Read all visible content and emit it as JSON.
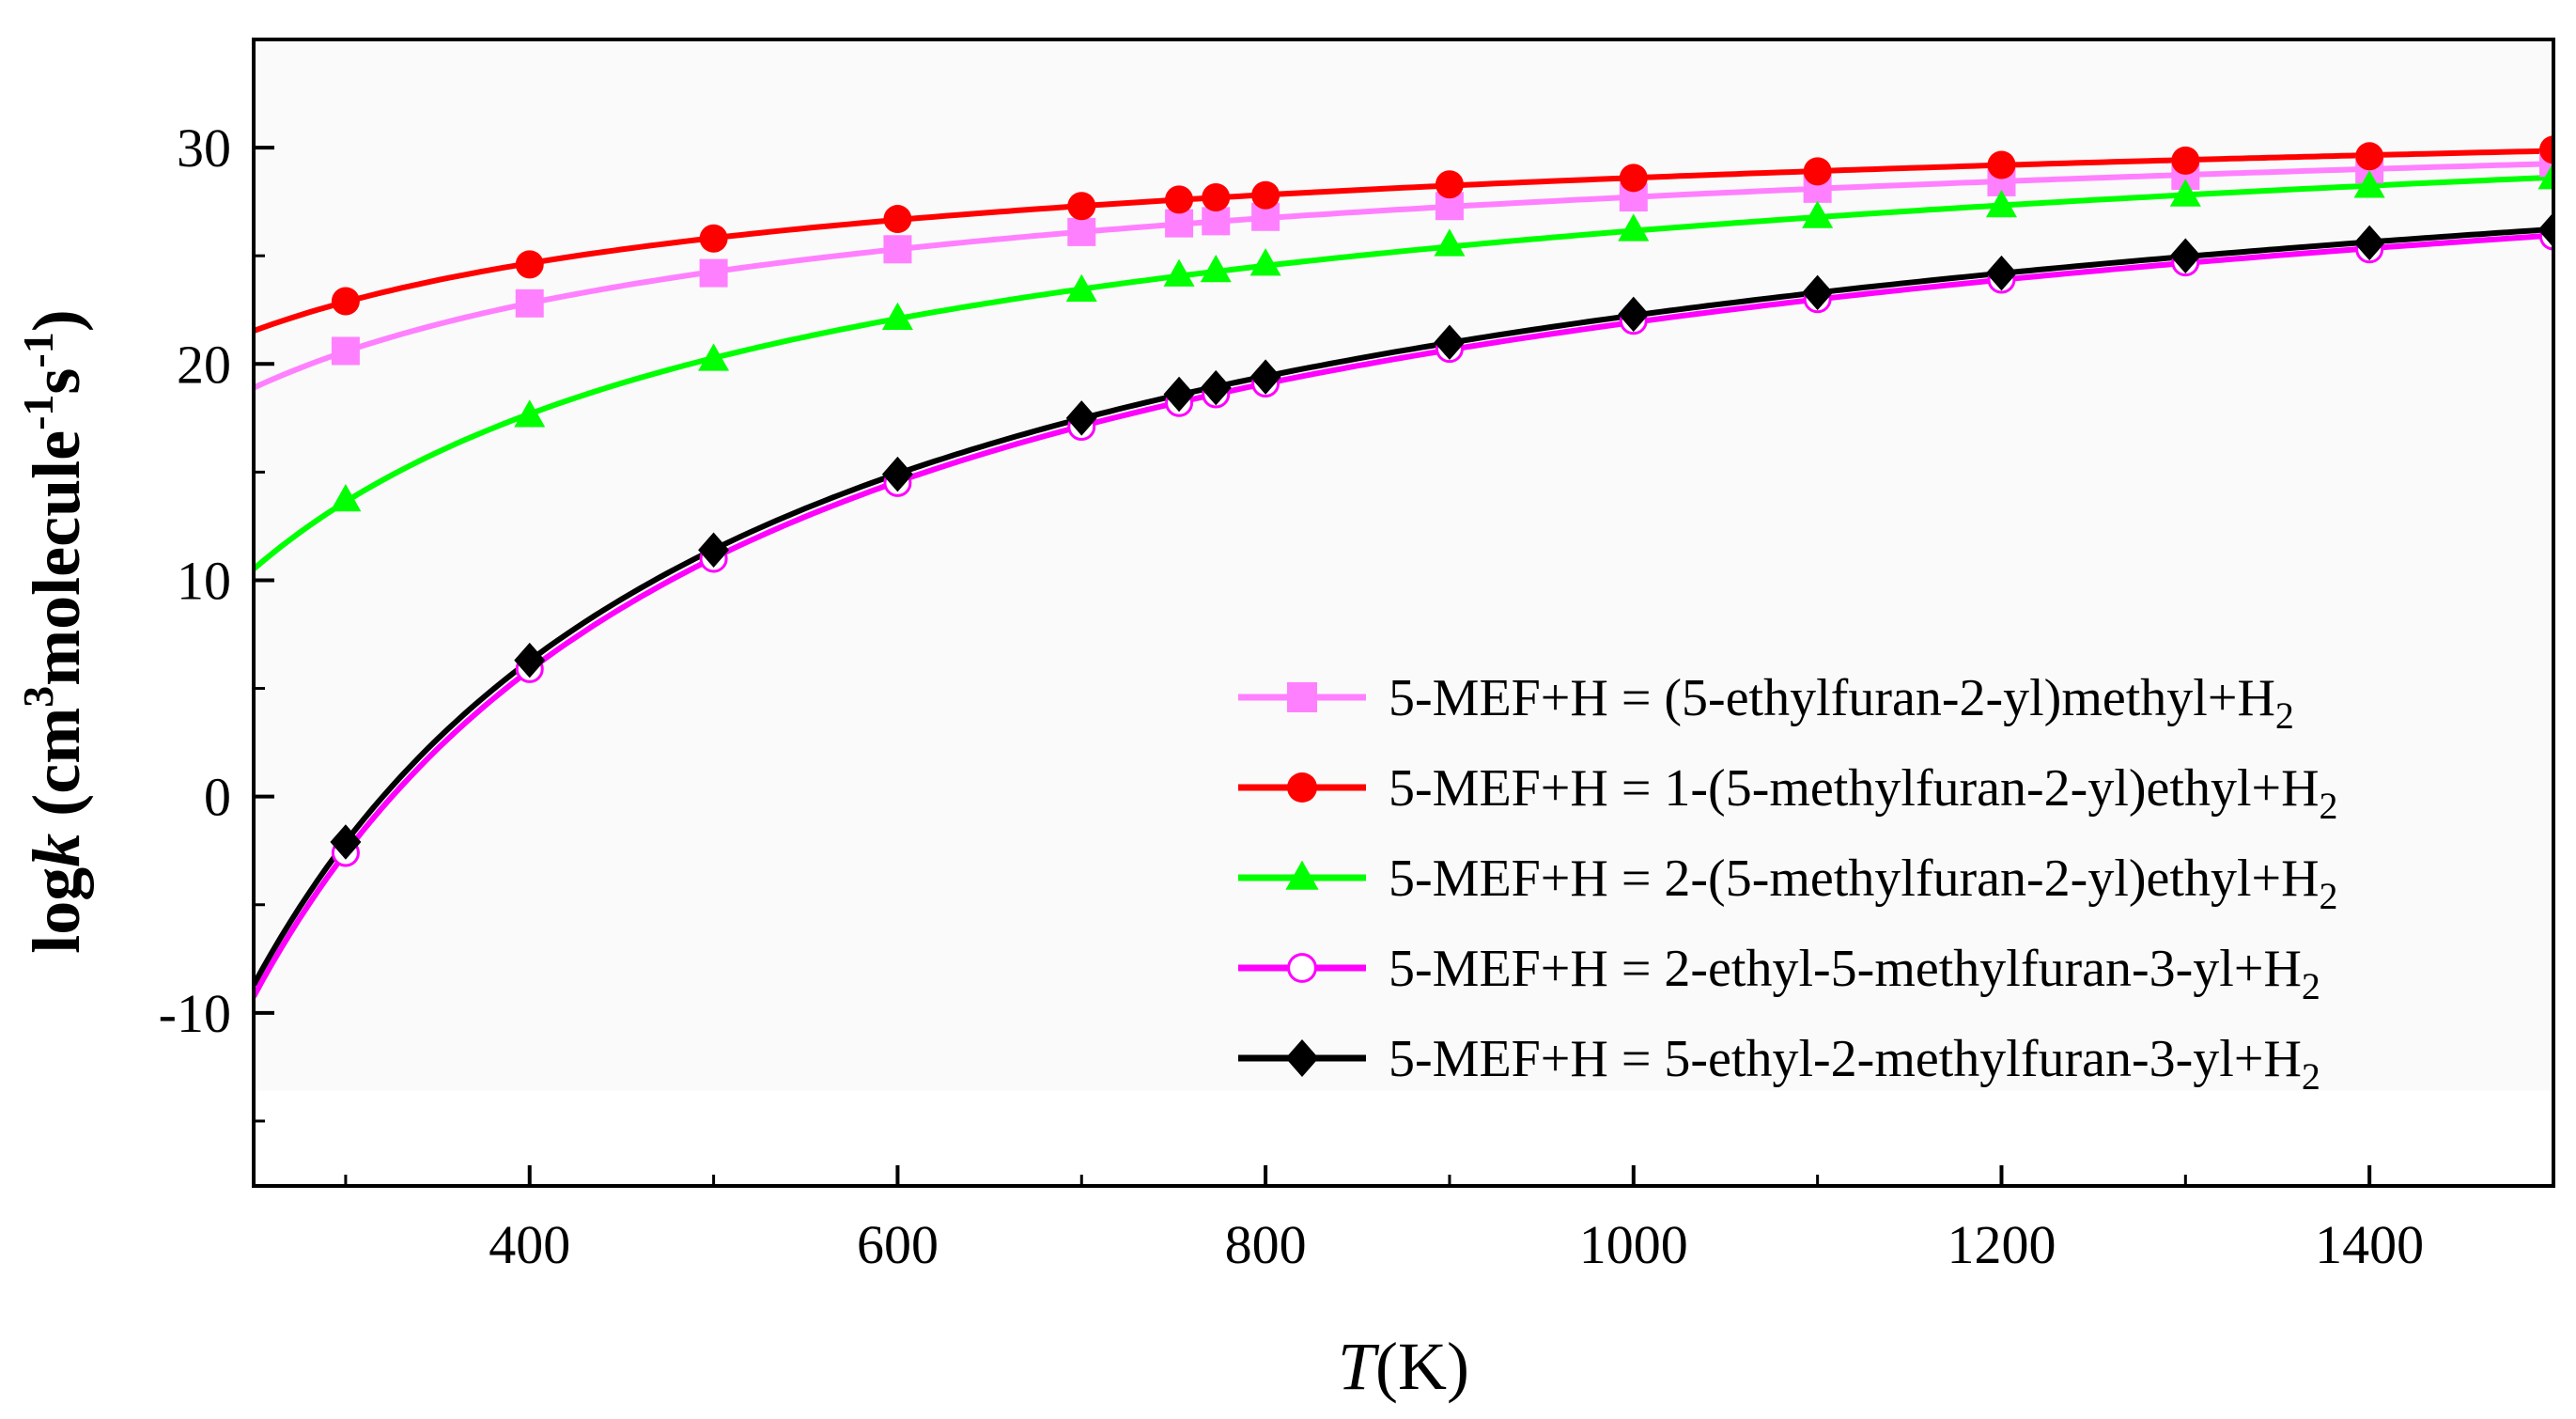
{
  "chart_data": {
    "type": "line",
    "title": "",
    "xlabel_italic": "T",
    "xlabel_rest": "(K)",
    "ylabel": {
      "prefix": "log",
      "italic": "k",
      "unit_open": " (cm",
      "sup1": "3",
      "mid": "molecule",
      "sup2": "-1",
      "mid2": "s",
      "sup3": "-1",
      "close": ")"
    },
    "xlim": [
      250,
      1500
    ],
    "ylim": [
      -18,
      35
    ],
    "x_ticks": [
      400,
      600,
      800,
      1000,
      1200,
      1400
    ],
    "x_tick_labels": [
      "400",
      "600",
      "800",
      "1000",
      "1200",
      "1400"
    ],
    "y_ticks": [
      -10,
      0,
      10,
      20,
      30
    ],
    "y_tick_labels": [
      "-10",
      "0",
      "10",
      "20",
      "30"
    ],
    "legend_position": "lower-right",
    "grid": false,
    "x": [
      300,
      400,
      500,
      600,
      700,
      753,
      773,
      800,
      900,
      1000,
      1100,
      1200,
      1300,
      1400,
      1500
    ],
    "series": [
      {
        "name": "5-MEF+H = (5-ethylfuran-2-yl)methyl+H",
        "sub": "2",
        "color": "#ff80ff",
        "marker": "square",
        "values": [
          20.6,
          22.8,
          24.2,
          25.3,
          26.1,
          26.5,
          26.6,
          26.8,
          27.3,
          27.7,
          28.1,
          28.4,
          28.7,
          29.0,
          29.3
        ]
      },
      {
        "name": "5-MEF+H = 1-(5-methylfuran-2-yl)ethyl+H",
        "sub": "2",
        "color": "#ff0000",
        "marker": "circle",
        "values": [
          22.9,
          24.6,
          25.8,
          26.7,
          27.3,
          27.6,
          27.7,
          27.8,
          28.3,
          28.6,
          28.9,
          29.2,
          29.4,
          29.6,
          29.9
        ]
      },
      {
        "name": "5-MEF+H = 2-(5-methylfuran-2-yl)ethyl+H",
        "sub": "2",
        "color": "#00ff00",
        "marker": "triangle",
        "values": [
          13.7,
          17.6,
          20.2,
          22.1,
          23.4,
          24.1,
          24.3,
          24.6,
          25.5,
          26.2,
          26.8,
          27.3,
          27.8,
          28.2,
          28.6
        ]
      },
      {
        "name": "5-MEF+H = 2-ethyl-5-methylfuran-3-yl+H",
        "sub": "2",
        "color": "#ff00ff",
        "marker": "open-circle",
        "values": [
          -2.6,
          5.9,
          11.0,
          14.5,
          17.1,
          18.2,
          18.6,
          19.1,
          20.7,
          22.0,
          23.0,
          23.9,
          24.7,
          25.3,
          25.9
        ]
      },
      {
        "name": "5-MEF+H = 5-ethyl-2-methylfuran-3-yl+H",
        "sub": "2",
        "color": "#000000",
        "marker": "diamond",
        "values": [
          -2.1,
          6.3,
          11.4,
          14.9,
          17.5,
          18.6,
          18.9,
          19.4,
          21.0,
          22.3,
          23.3,
          24.2,
          25.0,
          25.6,
          26.2
        ]
      }
    ]
  }
}
